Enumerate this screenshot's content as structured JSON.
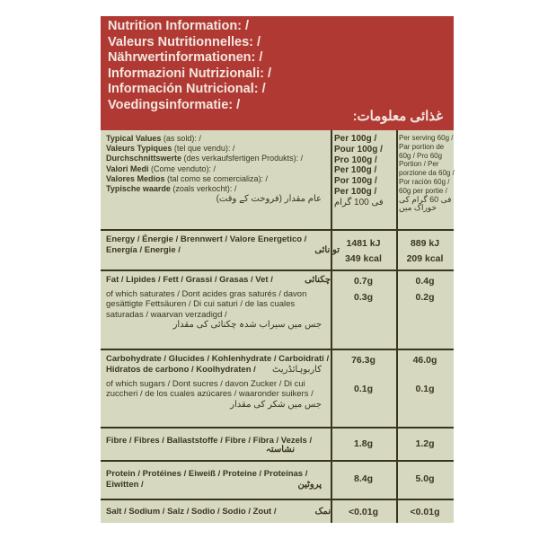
{
  "header": {
    "lines": [
      "Nutrition Information: /",
      "Valeurs Nutritionnelles: /",
      "Nährwertinformationen: /",
      "Informazioni Nutrizionali: /",
      "Información Nutricional: /",
      "Voedingsinformatie: /"
    ],
    "urdu": "غذائی معلومات:"
  },
  "typical": {
    "lines": [
      [
        "Typical Values",
        " (as sold): /"
      ],
      [
        "Valeurs Typiques",
        " (tel que vendu): /"
      ],
      [
        "Durchschnittswerte",
        " (des verkaufsfertigen Produkts): /"
      ],
      [
        "Valori Medi",
        " (Come venduto): /"
      ],
      [
        "Valores Medios",
        " (tal como se comercializa): /"
      ],
      [
        "Typische waarde",
        " (zoals verkocht): /"
      ]
    ],
    "urdu": "عام مقدار (فروخت کے وقت)",
    "per100": [
      "Per 100g /",
      "Pour 100g /",
      "Pro 100g /",
      "Per 100g /",
      "Por 100g /",
      "Per 100g /"
    ],
    "per100_urdu": "فی 100 گرام",
    "serving": [
      "Per serving 60g /",
      "Par portion de",
      "60g / Pro 60g",
      "Portion / Per",
      "porzione da 60g /",
      "Por ración 60g /",
      "60g per portie /"
    ],
    "serving_urdu": "فی 60 گرام کی خوراک میں"
  },
  "rows": [
    {
      "label": "Energy / Énergie / Brennwert / Valore Energetico / Energía / Energie /",
      "urdu": "توانائی",
      "v100": [
        "1481 kJ",
        "349 kcal"
      ],
      "vserv": [
        "889 kJ",
        "209 kcal"
      ]
    },
    {
      "label": "Fat / Lipides / Fett / Grassi / Grasas / Vet /",
      "urdu": "چکنائی",
      "v100": [
        "0.7g"
      ],
      "vserv": [
        "0.4g"
      ],
      "sub": {
        "label": "of which saturates / Dont acides gras saturés / davon gesättigte Fettsäuren / Di cui saturi / de las cuales saturadas / waarvan verzadigd /",
        "urdu": "جس میں سیراب شدہ چکنائی کی مقدار",
        "v100": "0.3g",
        "vserv": "0.2g"
      }
    },
    {
      "label": "Carbohydrate / Glucides / Kohlenhydrate / Carboidrati / Hidratos de carbono / Koolhydraten /",
      "urdu": "کاربوہائڈریٹ",
      "v100": [
        "76.3g"
      ],
      "vserv": [
        "46.0g"
      ],
      "sub": {
        "label": "of which sugars / Dont sucres / davon Zucker / Di cui zuccheri / de los cuales azúcares / waaronder suikers /",
        "urdu": "جس میں شکر کی مقدار",
        "v100": "0.1g",
        "vserv": "0.1g"
      }
    },
    {
      "label": "Fibre / Fibres / Ballaststoffe / Fibre / Fibra / Vezels /",
      "urdu": "نشاستہ",
      "v100": [
        "1.8g"
      ],
      "vserv": [
        "1.2g"
      ]
    },
    {
      "label": "Protein / Protéines / Eiweiß / Proteine / Proteínas / Eiwitten /",
      "urdu": "پروٹین",
      "v100": [
        "8.4g"
      ],
      "vserv": [
        "5.0g"
      ]
    },
    {
      "label": "Salt / Sodium / Salz / Sodio / Sodio / Zout /",
      "urdu": "نمک",
      "v100": [
        "<0.01g"
      ],
      "vserv": [
        "<0.01g"
      ]
    }
  ]
}
